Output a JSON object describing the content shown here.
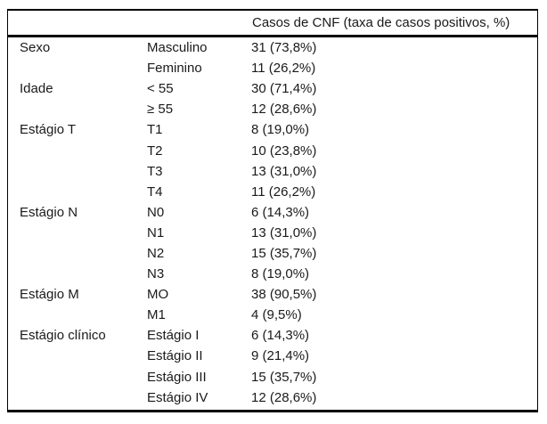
{
  "table": {
    "header": {
      "value_column": "Casos de CNF (taxa de casos positivos, %)"
    },
    "rows": [
      {
        "category": "Sexo",
        "sub": "Masculino",
        "value": "31 (73,8%)"
      },
      {
        "category": "",
        "sub": "Feminino",
        "value": "11 (26,2%)"
      },
      {
        "category": "Idade",
        "sub": "< 55",
        "value": "30 (71,4%)"
      },
      {
        "category": "",
        "sub": "≥ 55",
        "value": "12 (28,6%)"
      },
      {
        "category": "Estágio T",
        "sub": "T1",
        "value": "8 (19,0%)"
      },
      {
        "category": "",
        "sub": "T2",
        "value": "10 (23,8%)"
      },
      {
        "category": "",
        "sub": "T3",
        "value": "13 (31,0%)"
      },
      {
        "category": "",
        "sub": "T4",
        "value": "11 (26,2%)"
      },
      {
        "category": "Estágio N",
        "sub": "N0",
        "value": "6 (14,3%)"
      },
      {
        "category": "",
        "sub": "N1",
        "value": "13 (31,0%)"
      },
      {
        "category": "",
        "sub": "N2",
        "value": "15 (35,7%)"
      },
      {
        "category": "",
        "sub": "N3",
        "value": "8 (19,0%)"
      },
      {
        "category": "Estágio M",
        "sub": "MO",
        "value": "38 (90,5%)"
      },
      {
        "category": "",
        "sub": "M1",
        "value": "4 (9,5%)"
      },
      {
        "category": "Estágio clínico",
        "sub": "Estágio I",
        "value": "6 (14,3%)"
      },
      {
        "category": "",
        "sub": "Estágio II",
        "value": "9 (21,4%)"
      },
      {
        "category": "",
        "sub": "Estágio III",
        "value": "15 (35,7%)"
      },
      {
        "category": "",
        "sub": "Estágio IV",
        "value": "12 (28,6%)"
      }
    ]
  }
}
